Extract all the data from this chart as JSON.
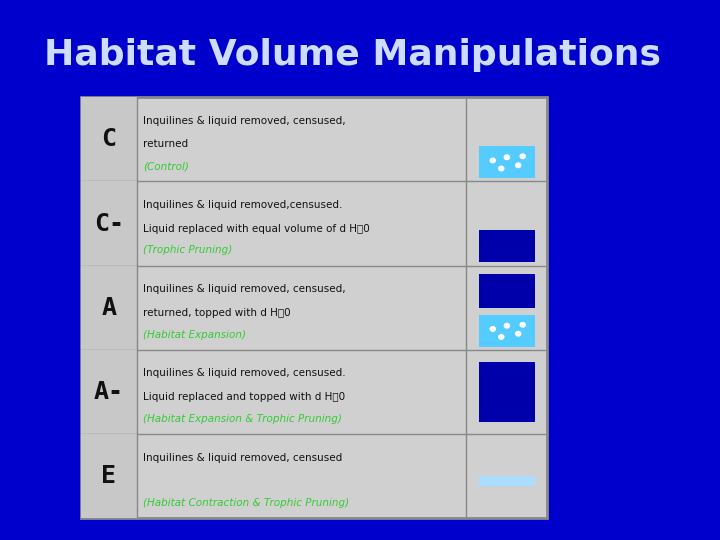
{
  "title": "Habitat Volume Manipulations",
  "title_color": "#ccddff",
  "bg_color": "#0000cc",
  "table_bg": "#d0d0d0",
  "row_bg": "#d0d0d0",
  "rows": [
    {
      "label": "C",
      "text_line1": "Inquilines & liquid removed, censused,",
      "text_line2": "returned ",
      "text_colored": "(Control)",
      "colored_color": "#33cc33",
      "vis_top_color": "#d0d0d0",
      "vis_bot_color": "#55ccff",
      "vis_bot_has_dots": true,
      "vis_top_has_dots": false
    },
    {
      "label": "C-",
      "text_line1": "Inquilines & liquid removed,censused.",
      "text_line2": "Liquid replaced with equal volume of d H0",
      "text_colored": "(Trophic Pruning)",
      "colored_color": "#33cc33",
      "vis_top_color": "#d0d0d0",
      "vis_bot_color": "#0000aa",
      "vis_bot_has_dots": false,
      "vis_top_has_dots": false
    },
    {
      "label": "A",
      "text_line1": "Inquilines & liquid removed, censused,",
      "text_line2": "returned, topped with d H0",
      "text_colored": "(Habitat Expansion)",
      "colored_color": "#33cc33",
      "vis_top_color": "#0000aa",
      "vis_bot_color": "#55ccff",
      "vis_bot_has_dots": true,
      "vis_top_has_dots": false
    },
    {
      "label": "A-",
      "text_line1": "Inquilines & liquid removed, censused.",
      "text_line2": "Liquid replaced and topped with d H0",
      "text_colored": "(Habitat Expansion & Trophic Pruning)",
      "colored_color": "#33cc33",
      "vis_top_color": "#0000aa",
      "vis_bot_color": "#0000aa",
      "vis_bot_has_dots": false,
      "vis_top_has_dots": false,
      "vis_single": true
    },
    {
      "label": "E",
      "text_line1": "Inquilines & liquid removed, censused",
      "text_line2": "",
      "text_colored": "(Habitat Contraction & Trophic Pruning)",
      "colored_color": "#33cc33",
      "vis_top_color": "#d0d0d0",
      "vis_bot_color": "#aaddff",
      "vis_bot_has_dots": false,
      "vis_top_has_dots": false,
      "vis_bot_thin": true
    }
  ]
}
